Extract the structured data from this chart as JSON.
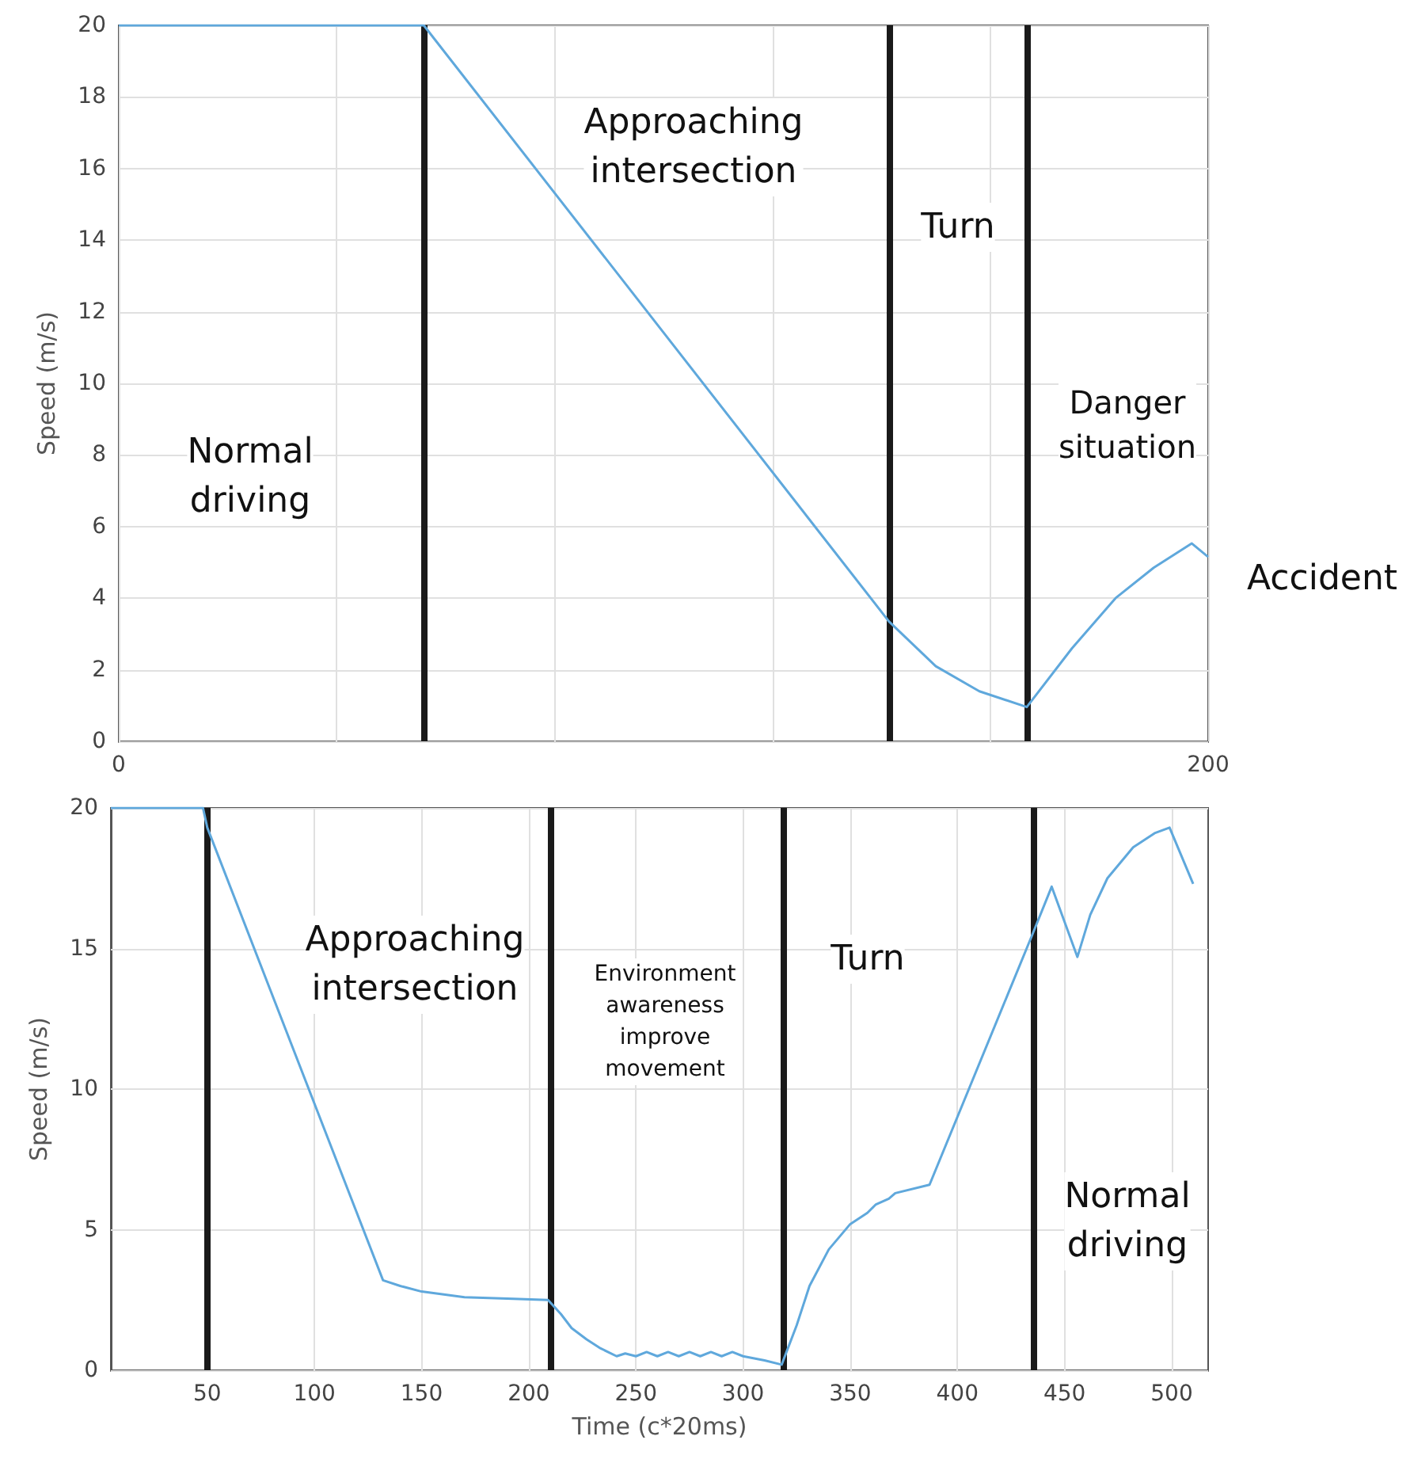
{
  "chart_data": [
    {
      "type": "line",
      "ylabel": "Speed (m/s)",
      "xlim": [
        0,
        200
      ],
      "xticks": [
        0,
        {
          "value": 40,
          "label": null
        },
        {
          "value": 80,
          "label": null
        },
        {
          "value": 120,
          "label": null
        },
        {
          "value": 160,
          "label": null
        },
        200
      ],
      "ylim": [
        0,
        20
      ],
      "yticks": [
        0,
        2,
        4,
        6,
        8,
        10,
        12,
        14,
        16,
        18,
        20
      ],
      "grid": true,
      "marker": "none",
      "line_style": "solid",
      "series": [
        {
          "color": "#5fa8dc",
          "x": [
            0,
            56,
            141.4,
            150,
            158,
            166.7,
            175,
            183,
            190,
            197,
            200
          ],
          "values": [
            20,
            20,
            3.35,
            2.1,
            1.4,
            0.96,
            2.6,
            4.0,
            4.85,
            5.53,
            5.15
          ]
        }
      ],
      "ref_lines": [
        {
          "axis": "x",
          "value": 56.1,
          "color": "#1a1a1a"
        },
        {
          "axis": "x",
          "value": 141.4,
          "color": "#1a1a1a"
        },
        {
          "axis": "x",
          "value": 166.7,
          "color": "#1a1a1a"
        }
      ],
      "annotations": [
        "Normal\ndriving",
        "Approaching\nintersection",
        "Turn",
        "Danger\nsituation",
        "Accident"
      ]
    },
    {
      "type": "line",
      "xlabel": "Time (c*20ms)",
      "ylabel": "Speed (m/s)",
      "xlim": [
        5,
        517
      ],
      "xticks": [
        50,
        100,
        150,
        200,
        250,
        300,
        350,
        400,
        450,
        500
      ],
      "ylim": [
        0,
        20
      ],
      "yticks": [
        0,
        5,
        10,
        15,
        20
      ],
      "grid": true,
      "marker": "none",
      "line_style": "solid",
      "series": [
        {
          "color": "#5fa8dc",
          "x": [
            5,
            48,
            50,
            132,
            140,
            150,
            170,
            190,
            209,
            215,
            220,
            227,
            233,
            241,
            245,
            250,
            255,
            260,
            265,
            270,
            275,
            280,
            285,
            290,
            295,
            300,
            310,
            318,
            325,
            331,
            340,
            350,
            358,
            362,
            368,
            371,
            387,
            435,
            444,
            456,
            462,
            470,
            482,
            492,
            499,
            510
          ],
          "values": [
            20,
            20,
            19.3,
            3.2,
            3.0,
            2.8,
            2.6,
            2.55,
            2.5,
            2.0,
            1.5,
            1.1,
            0.8,
            0.5,
            0.6,
            0.5,
            0.65,
            0.5,
            0.65,
            0.5,
            0.65,
            0.5,
            0.65,
            0.5,
            0.65,
            0.5,
            0.35,
            0.2,
            1.6,
            3.0,
            4.3,
            5.2,
            5.6,
            5.9,
            6.1,
            6.3,
            6.6,
            15.5,
            17.2,
            14.7,
            16.2,
            17.5,
            18.6,
            19.1,
            19.3,
            17.3
          ]
        }
      ],
      "ref_lines": [
        {
          "axis": "x",
          "value": 50,
          "color": "#1a1a1a"
        },
        {
          "axis": "x",
          "value": 210,
          "color": "#1a1a1a"
        },
        {
          "axis": "x",
          "value": 318.8,
          "color": "#1a1a1a"
        },
        {
          "axis": "x",
          "value": 435.6,
          "color": "#1a1a1a"
        }
      ],
      "annotations": [
        "Approaching\nintersection",
        "Environment\nawareness\nimprove\nmovement",
        "Turn",
        "Normal\ndriving"
      ]
    }
  ]
}
